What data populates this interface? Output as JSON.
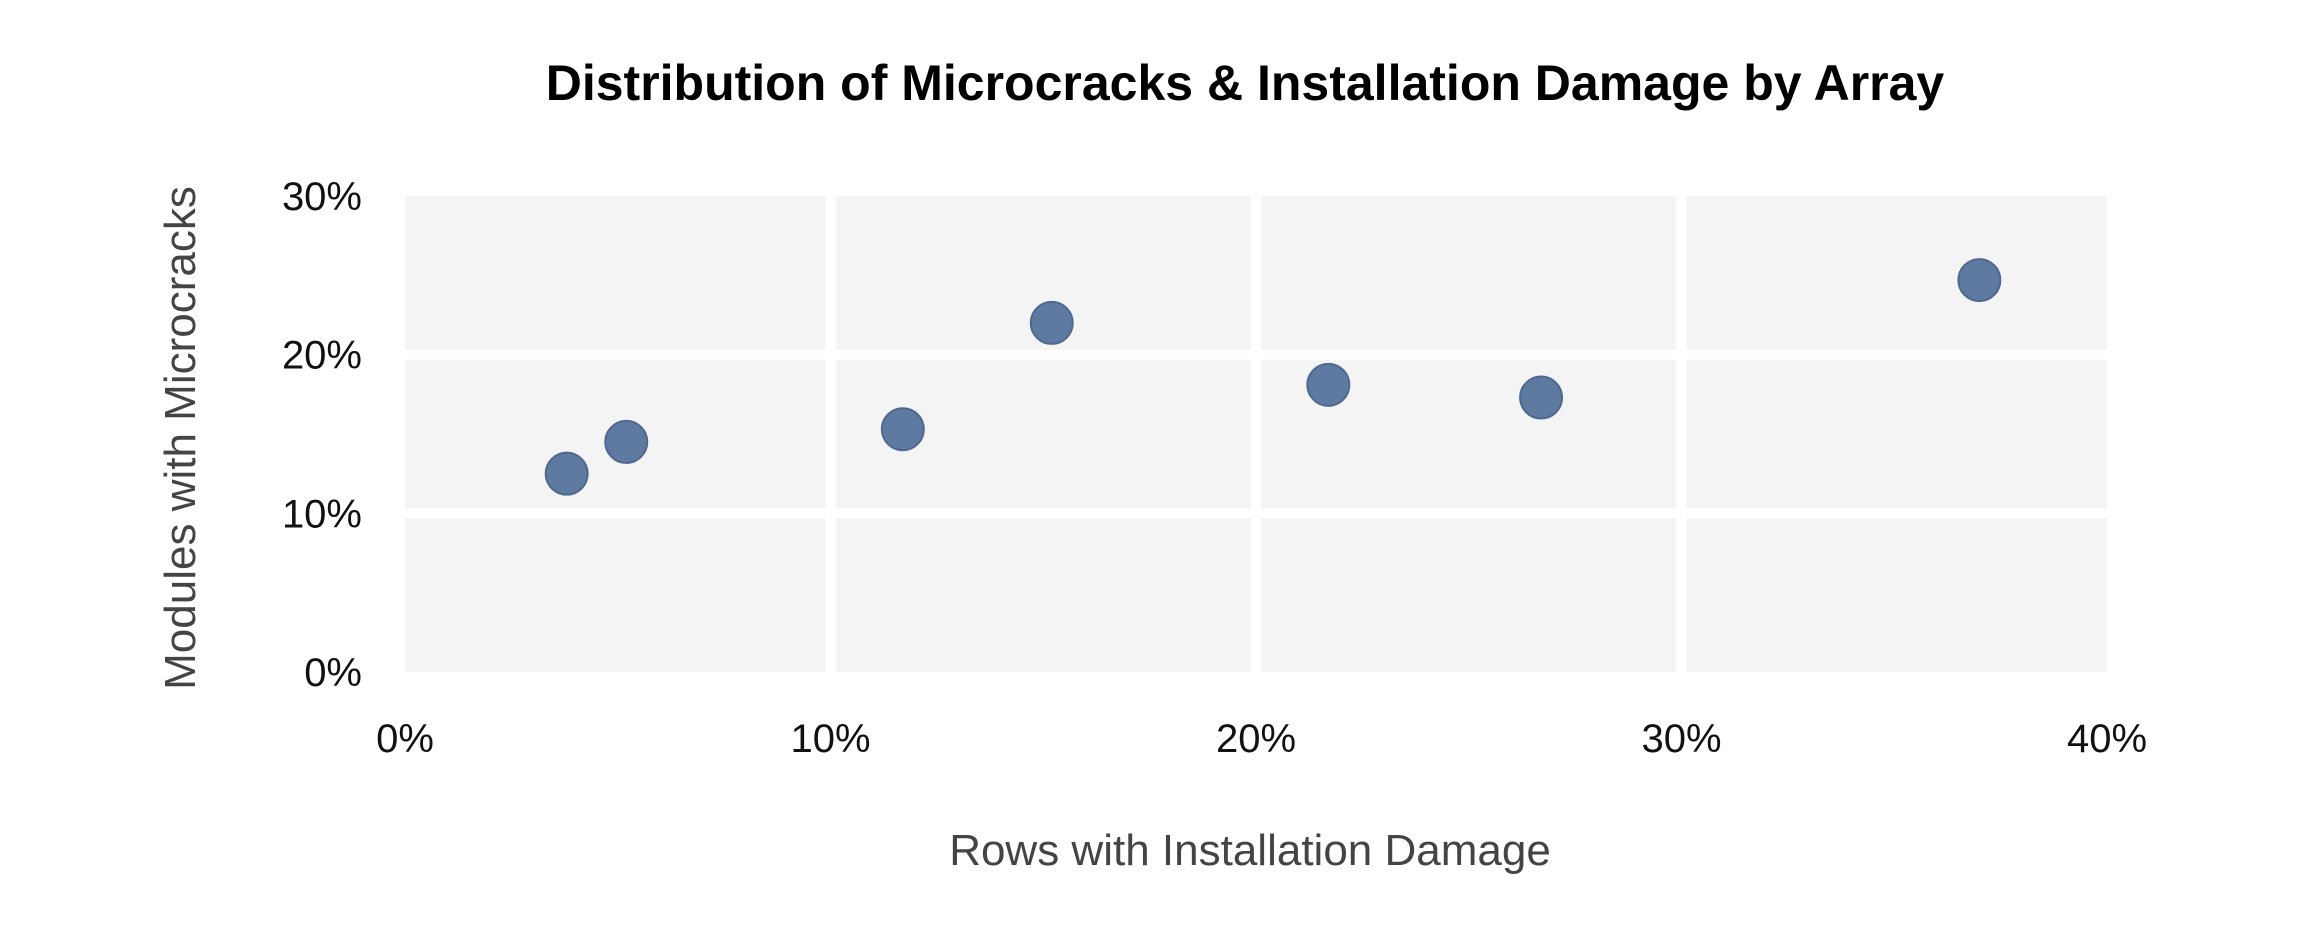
{
  "chart_data": {
    "type": "scatter",
    "title": "Distribution of Microcracks & Installation Damage by Array",
    "xlabel": "Rows with Installation Damage",
    "ylabel": "Modules with Microcracks",
    "xlim": [
      0,
      40
    ],
    "ylim": [
      0,
      30
    ],
    "x_ticks": [
      "0%",
      "10%",
      "20%",
      "30%",
      "40%"
    ],
    "y_ticks": [
      "0%",
      "10%",
      "20%",
      "30%"
    ],
    "x_tick_values": [
      0,
      10,
      20,
      30,
      40
    ],
    "y_tick_values": [
      0,
      10,
      20,
      30
    ],
    "grid": true,
    "series": [
      {
        "points": [
          {
            "x": 3.8,
            "y": 12.5
          },
          {
            "x": 5.2,
            "y": 14.5
          },
          {
            "x": 11.7,
            "y": 15.3
          },
          {
            "x": 15.2,
            "y": 22.0
          },
          {
            "x": 21.7,
            "y": 18.1
          },
          {
            "x": 26.7,
            "y": 17.3
          },
          {
            "x": 37.0,
            "y": 24.7
          }
        ]
      }
    ],
    "marker_color": "#5f7aa0"
  }
}
